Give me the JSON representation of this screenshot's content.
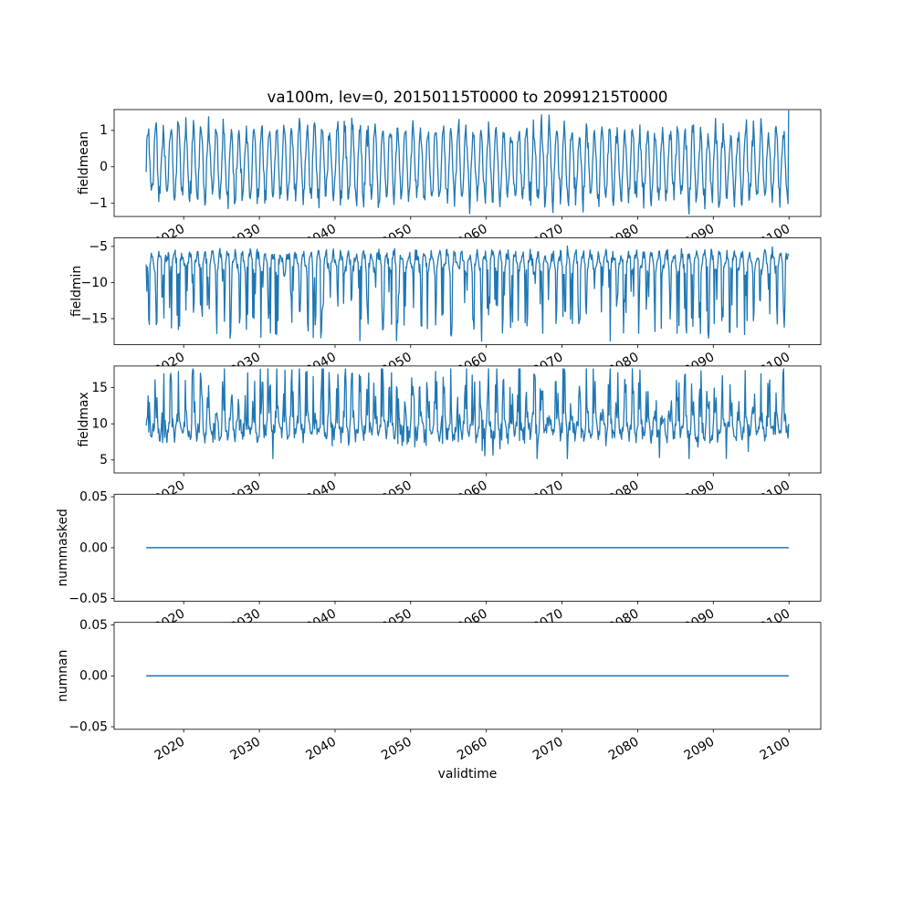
{
  "figure": {
    "title": "va100m, lev=0, 20150115T0000 to 20991215T0000",
    "xlabel": "validtime",
    "background": "#ffffff",
    "line_color": "#1f77b4",
    "frame_color": "#000000",
    "xlim": [
      2010.8,
      2104.2
    ],
    "xticks": [
      {
        "value": 2020,
        "label": "2020"
      },
      {
        "value": 2030,
        "label": "2030"
      },
      {
        "value": 2040,
        "label": "2040"
      },
      {
        "value": 2050,
        "label": "2050"
      },
      {
        "value": 2060,
        "label": "2060"
      },
      {
        "value": 2070,
        "label": "2070"
      },
      {
        "value": 2080,
        "label": "2080"
      },
      {
        "value": 2090,
        "label": "2090"
      },
      {
        "value": 2100,
        "label": "2100"
      }
    ]
  },
  "chart_data": [
    {
      "type": "line",
      "ylabel": "fieldmean",
      "ylim": [
        -1.36,
        1.57
      ],
      "yticks": [
        {
          "value": 1,
          "label": "1"
        },
        {
          "value": 0,
          "label": "0"
        },
        {
          "value": -1,
          "label": "−1"
        }
      ],
      "summary": {
        "approx_min": -1.32,
        "approx_max": 1.55,
        "approx_mean": 0.05,
        "periodicity": "annual oscillation, monthly samples 2015-01 to 2099-12"
      },
      "series": {
        "label": "fieldmean",
        "model": "seasonal",
        "seed": 7,
        "n": 1020,
        "x_start": 2015.04,
        "x_end": 2099.96,
        "level": 0.08,
        "swing": 0.95,
        "phase": 0.0,
        "amp_jitter": 0.5,
        "noise": 0.5,
        "clip": [
          -1.32,
          1.5
        ],
        "last_value": 1.55
      }
    },
    {
      "type": "line",
      "ylabel": "fieldmin",
      "ylim": [
        -18.6,
        -3.8
      ],
      "yticks": [
        {
          "value": -5,
          "label": "−5"
        },
        {
          "value": -10,
          "label": "−10"
        },
        {
          "value": -15,
          "label": "−15"
        }
      ],
      "summary": {
        "approx_min": -18.4,
        "approx_max": -4.4,
        "approx_mean": -8.5,
        "periodicity": "annual oscillation with deep negative spikes"
      },
      "series": {
        "label": "fieldmin",
        "model": "seasonal",
        "seed": 13,
        "n": 1020,
        "x_start": 2015.04,
        "x_end": 2099.96,
        "level": -7.3,
        "swing": 1.25,
        "phase": 3.14159,
        "amp_jitter": 0.4,
        "noise": 1.5,
        "spikes": {
          "dir": -1,
          "season_gate": 0.25,
          "prob": 0.5,
          "min": 2.0,
          "var": 7.5
        },
        "dips": {
          "dir": 1,
          "prob": 0.02,
          "min": 0.5,
          "var": 0.6
        },
        "clip": [
          -18.45,
          -4.4
        ],
        "last_value": null
      }
    },
    {
      "type": "line",
      "ylabel": "fieldmax",
      "ylim": [
        3.2,
        18.0
      ],
      "yticks": [
        {
          "value": 15,
          "label": "15"
        },
        {
          "value": 10,
          "label": "10"
        },
        {
          "value": 5,
          "label": "5"
        }
      ],
      "summary": {
        "approx_min": 5.2,
        "approx_max": 17.6,
        "approx_mean": 10.3,
        "periodicity": "annual oscillation with tall positive spikes"
      },
      "series": {
        "label": "fieldmax",
        "model": "seasonal",
        "seed": 21,
        "n": 1020,
        "x_start": 2015.04,
        "x_end": 2099.96,
        "level": 9.9,
        "swing": 1.5,
        "phase": 0.0,
        "amp_jitter": 0.5,
        "noise": 2.4,
        "spikes": {
          "dir": 1,
          "season_gate": 0.25,
          "prob": 0.48,
          "min": 1.8,
          "var": 5.2
        },
        "dips": {
          "dir": -1,
          "prob": 0.07,
          "min": 1.2,
          "var": 2.2
        },
        "clip": [
          5.2,
          17.6
        ],
        "last_value": null
      }
    },
    {
      "type": "line",
      "ylabel": "nummasked",
      "ylim": [
        -0.0525,
        0.0525
      ],
      "yticks": [
        {
          "value": 0.05,
          "label": "0.05"
        },
        {
          "value": 0,
          "label": "0.00"
        },
        {
          "value": -0.05,
          "label": "−0.05"
        }
      ],
      "summary": {
        "constant_value": 0.0
      },
      "series": {
        "label": "nummasked",
        "model": "constant",
        "value": 0,
        "x_start": 2015.04,
        "x_end": 2099.96
      }
    },
    {
      "type": "line",
      "ylabel": "numnan",
      "ylim": [
        -0.0525,
        0.0525
      ],
      "yticks": [
        {
          "value": 0.05,
          "label": "0.05"
        },
        {
          "value": 0,
          "label": "0.00"
        },
        {
          "value": -0.05,
          "label": "−0.05"
        }
      ],
      "summary": {
        "constant_value": 0.0
      },
      "series": {
        "label": "numnan",
        "model": "constant",
        "value": 0,
        "x_start": 2015.04,
        "x_end": 2099.96
      }
    }
  ]
}
